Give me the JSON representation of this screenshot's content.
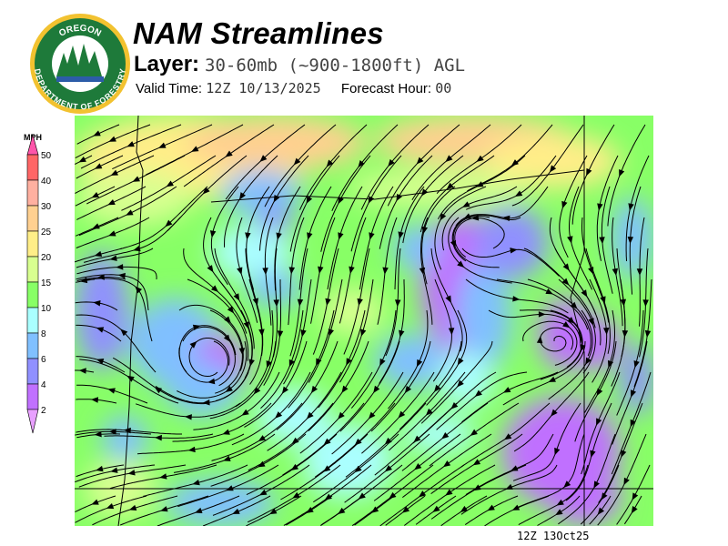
{
  "header": {
    "title": "NAM Streamlines",
    "layer_label": "Layer:",
    "layer_value": "30-60mb (~900-1800ft) AGL",
    "valid_label": "Valid Time:",
    "valid_value": "12Z 10/13/2025",
    "forecast_label": "Forecast Hour:",
    "forecast_value": "00"
  },
  "logo": {
    "top_text": "OREGON",
    "bottom_text": "DEPARTMENT OF FORESTRY"
  },
  "legend": {
    "unit": "MPH",
    "ticks": [
      "50",
      "40",
      "30",
      "25",
      "20",
      "15",
      "10",
      "8",
      "6",
      "4",
      "2"
    ],
    "colors": {
      "above": "#ff55aa",
      "b50": "#ff6666",
      "b40": "#ffb0a0",
      "b30": "#ffd090",
      "b25": "#ffee88",
      "b20": "#d8ff90",
      "b15": "#88ff66",
      "b10": "#aaffff",
      "b8": "#80c0ff",
      "b6": "#9090ff",
      "b4": "#c070ff",
      "below": "#e8a0ff"
    }
  },
  "footer": {
    "stamp": "12Z 13Oct25"
  }
}
